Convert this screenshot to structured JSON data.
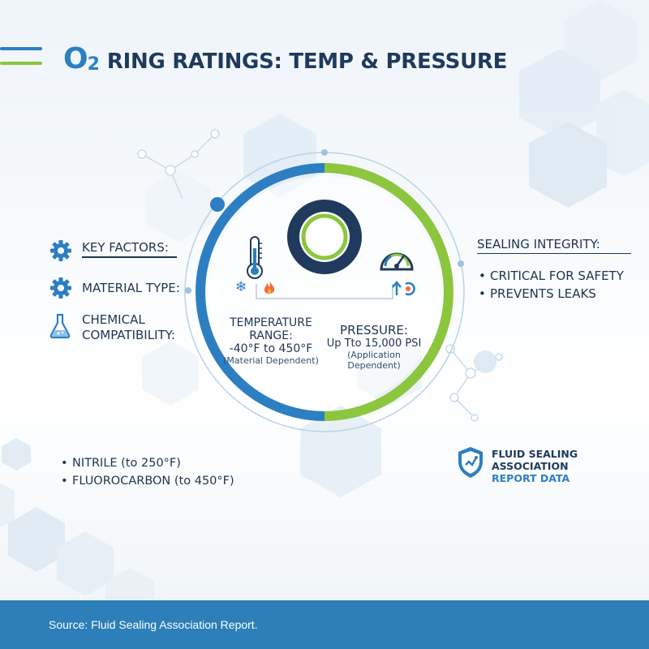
{
  "header": {
    "logo_main": "O",
    "logo_sub": "2",
    "title": "RING RATINGS: TEMP & PRESSURE"
  },
  "left": {
    "key_factors": "KEY FACTORS:",
    "material_type": "MATERIAL TYPE:",
    "chemical_line1": "CHEMICAL",
    "chemical_line2": "COMPATIBILITY:",
    "materials": [
      "NITRILE (to 250°F)",
      "FLUOROCARBON (to 450°F)"
    ]
  },
  "center": {
    "temperature": {
      "heading": "TEMPERATURE RANGE:",
      "value": "-40°F to 450°F",
      "note": "(Material Dependent)"
    },
    "pressure": {
      "heading": "PRESSURE:",
      "value": "Up Tto 15,000 PSI",
      "note": "(Application Dependent)"
    }
  },
  "right": {
    "heading": "SEALING INTEGRITY:",
    "items": [
      "CRITICAL FOR SAFETY",
      "PREVENTS LEAKS"
    ]
  },
  "seal": {
    "line1": "FLUID SEALING",
    "line2": "ASSOCIATION",
    "line3": "REPORT DATA"
  },
  "footer": {
    "source": "Source: Fluid Sealing Association Report."
  },
  "colors": {
    "blue": "#2d7fc1",
    "green": "#8cc63f",
    "navy": "#1f3a5c",
    "footer": "#2c7fb8"
  },
  "icons": [
    "gear-icon",
    "flask-icon",
    "thermometer-icon",
    "snowflake-icon",
    "flame-icon",
    "gauge-icon",
    "arrow-up-icon",
    "shield-icon"
  ]
}
